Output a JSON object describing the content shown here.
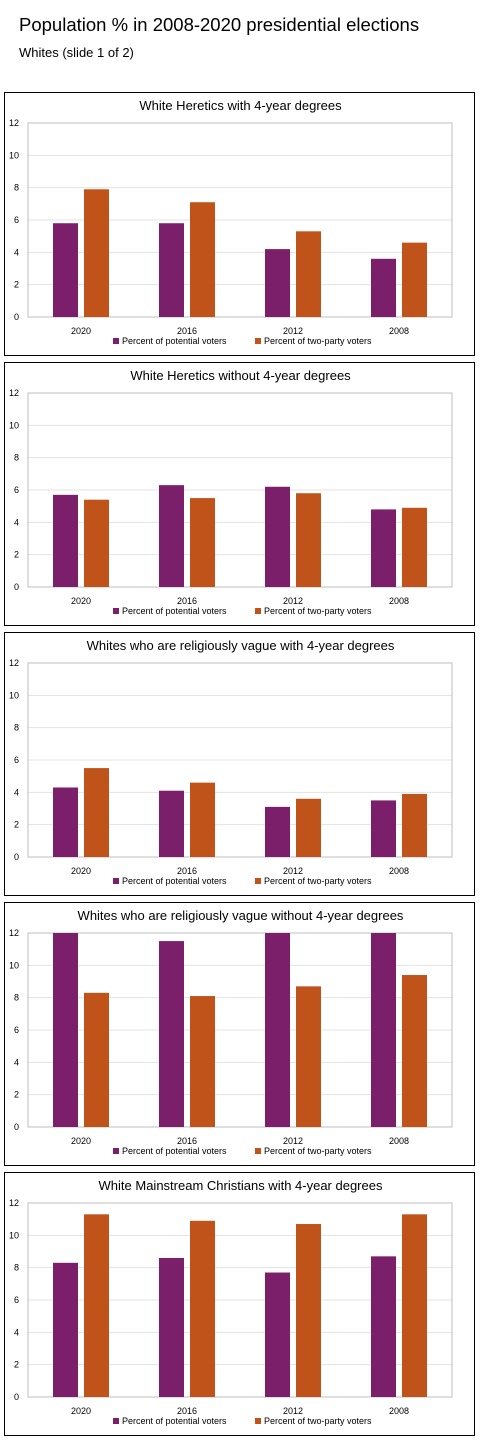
{
  "page": {
    "title": "Population % in 2008-2020 presidential elections",
    "subtitle": "Whites (slide 1 of 2)"
  },
  "colors": {
    "potential": "#7B1F6A",
    "two_party": "#C0531A",
    "gridline": "#E3E3E3",
    "axis": "#BFBFBF"
  },
  "chart_data": [
    {
      "type": "bar",
      "title": "White Heretics with 4-year degrees",
      "categories": [
        "2020",
        "2016",
        "2012",
        "2008"
      ],
      "series": [
        {
          "name": "Percent of potential voters",
          "values": [
            5.8,
            5.8,
            4.2,
            3.6
          ]
        },
        {
          "name": "Percent of two-party voters",
          "values": [
            7.9,
            7.1,
            5.3,
            4.6
          ]
        }
      ],
      "ylim": [
        0,
        12
      ],
      "yticks": [
        0,
        2,
        4,
        6,
        8,
        10,
        12
      ],
      "grid": true,
      "legend": "bottom"
    },
    {
      "type": "bar",
      "title": "White Heretics without 4-year degrees",
      "categories": [
        "2020",
        "2016",
        "2012",
        "2008"
      ],
      "series": [
        {
          "name": "Percent of potential voters",
          "values": [
            5.7,
            6.3,
            6.2,
            4.8
          ]
        },
        {
          "name": "Percent of two-party voters",
          "values": [
            5.4,
            5.5,
            5.8,
            4.9
          ]
        }
      ],
      "ylim": [
        0,
        12
      ],
      "yticks": [
        0,
        2,
        4,
        6,
        8,
        10,
        12
      ],
      "grid": true,
      "legend": "bottom"
    },
    {
      "type": "bar",
      "title": "Whites who are religiously vague with 4-year degrees",
      "categories": [
        "2020",
        "2016",
        "2012",
        "2008"
      ],
      "series": [
        {
          "name": "Percent of potential voters",
          "values": [
            4.3,
            4.1,
            3.1,
            3.5
          ]
        },
        {
          "name": "Percent of two-party voters",
          "values": [
            5.5,
            4.6,
            3.6,
            3.9
          ]
        }
      ],
      "ylim": [
        0,
        12
      ],
      "yticks": [
        0,
        2,
        4,
        6,
        8,
        10,
        12
      ],
      "grid": true,
      "legend": "bottom"
    },
    {
      "type": "bar",
      "title": "Whites who are religiously vague without 4-year degrees",
      "categories": [
        "2020",
        "2016",
        "2012",
        "2008"
      ],
      "series": [
        {
          "name": "Percent of potential voters",
          "values": [
            12,
            11.5,
            12,
            12
          ]
        },
        {
          "name": "Percent of two-party voters",
          "values": [
            8.3,
            8.1,
            8.7,
            9.4
          ]
        }
      ],
      "ylim": [
        0,
        12
      ],
      "yticks": [
        0,
        2,
        4,
        6,
        8,
        10,
        12
      ],
      "grid": true,
      "legend": "bottom"
    },
    {
      "type": "bar",
      "title": "White Mainstream Christians with 4-year degrees",
      "categories": [
        "2020",
        "2016",
        "2012",
        "2008"
      ],
      "series": [
        {
          "name": "Percent of potential voters",
          "values": [
            8.3,
            8.6,
            7.7,
            8.7
          ]
        },
        {
          "name": "Percent of two-party voters",
          "values": [
            11.3,
            10.9,
            10.7,
            11.3
          ]
        }
      ],
      "ylim": [
        0,
        12
      ],
      "yticks": [
        0,
        2,
        4,
        6,
        8,
        10,
        12
      ],
      "grid": true,
      "legend": "bottom"
    }
  ]
}
